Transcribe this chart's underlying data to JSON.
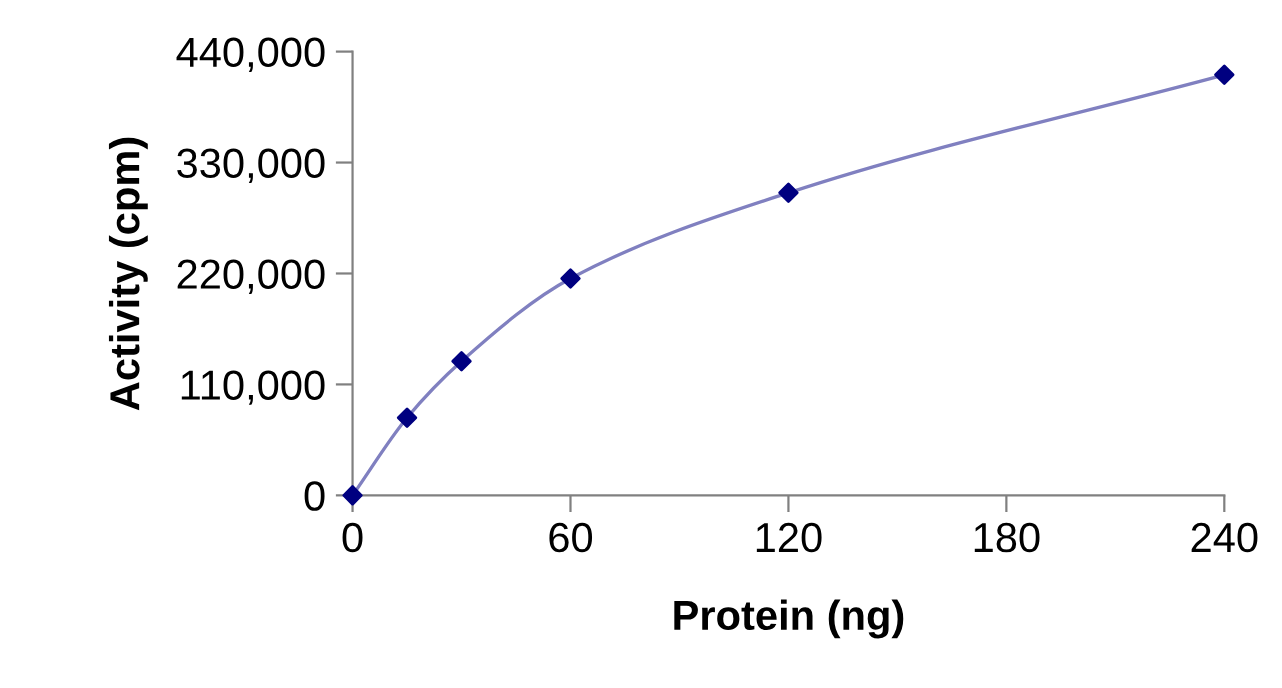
{
  "chart_data": {
    "type": "line",
    "xlabel": "Protein (ng)",
    "ylabel": "Activity (cpm)",
    "x": [
      0,
      15,
      30,
      60,
      120,
      240
    ],
    "series": [
      {
        "color": "#8080c0",
        "marker": "none",
        "values": [
          0,
          77000,
          133000,
          215000,
          300000,
          417000
        ]
      },
      {
        "type": "scatter",
        "color": "#000080",
        "marker": "diamond",
        "values": [
          0,
          77000,
          133000,
          215000,
          300000,
          417000
        ]
      }
    ],
    "xlim": [
      0,
      240
    ],
    "xticks": [
      0,
      60,
      120,
      180,
      240
    ],
    "ylim": [
      0,
      440000
    ],
    "yticks": [
      {
        "value": 0,
        "label": "0"
      },
      {
        "value": 110000,
        "label": "110,000"
      },
      {
        "value": 220000,
        "label": "220,000"
      },
      {
        "value": 330000,
        "label": "330,000"
      },
      {
        "value": 440000,
        "label": "440,000"
      }
    ],
    "grid": false,
    "legend": false
  }
}
